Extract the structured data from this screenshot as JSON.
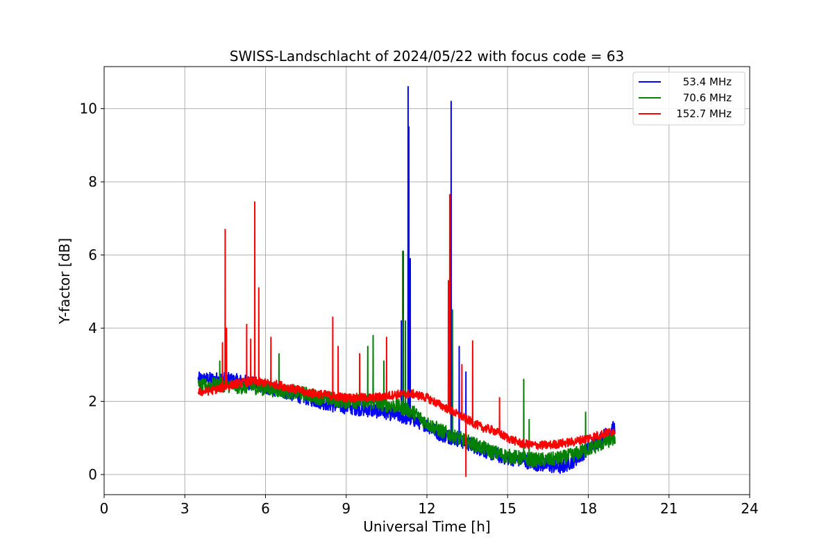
{
  "chart_data": {
    "type": "line",
    "title": "SWISS-Landschlacht of 2024/05/22 with focus code = 63",
    "xlabel": "Universal Time [h]",
    "ylabel": "Y-factor [dB]",
    "xlim": [
      0,
      24
    ],
    "ylim": [
      -0.55,
      11.15
    ],
    "xticks": [
      0,
      3,
      6,
      9,
      12,
      15,
      18,
      21,
      24
    ],
    "xtick_labels": [
      "0",
      "3",
      "6",
      "9",
      "12",
      "15",
      "18",
      "21",
      "24"
    ],
    "yticks": [
      0,
      2,
      4,
      6,
      8,
      10
    ],
    "ytick_labels": [
      "0",
      "2",
      "4",
      "6",
      "8",
      "10"
    ],
    "grid": true,
    "legend_position": "top-right",
    "series": [
      {
        "name": "53.4 MHz",
        "color": "#0000ff",
        "noise": 0.2,
        "x": [
          3.5,
          4.0,
          4.5,
          5.0,
          5.5,
          6.0,
          6.5,
          7.0,
          7.5,
          8.0,
          8.5,
          9.0,
          9.5,
          10.0,
          10.5,
          11.0,
          11.5,
          12.0,
          12.5,
          13.0,
          13.5,
          14.0,
          14.5,
          15.0,
          15.5,
          16.0,
          16.5,
          17.0,
          17.5,
          18.0,
          18.5,
          19.0
        ],
        "y": [
          2.6,
          2.6,
          2.6,
          2.55,
          2.5,
          2.4,
          2.3,
          2.2,
          2.1,
          2.0,
          1.9,
          1.85,
          1.8,
          1.75,
          1.7,
          1.6,
          1.5,
          1.35,
          1.1,
          1.0,
          0.85,
          0.7,
          0.55,
          0.45,
          0.4,
          0.3,
          0.25,
          0.2,
          0.4,
          0.7,
          1.0,
          1.3
        ],
        "spikes": [
          [
            11.05,
            4.2
          ],
          [
            11.12,
            6.1
          ],
          [
            11.3,
            10.6
          ],
          [
            11.33,
            9.5
          ],
          [
            11.38,
            5.9
          ],
          [
            12.9,
            10.2
          ],
          [
            13.2,
            3.5
          ],
          [
            13.45,
            2.8
          ]
        ]
      },
      {
        "name": "70.6 MHz",
        "color": "#008000",
        "noise": 0.2,
        "x": [
          3.5,
          4.0,
          4.5,
          5.0,
          5.5,
          6.0,
          6.5,
          7.0,
          7.5,
          8.0,
          8.5,
          9.0,
          9.5,
          10.0,
          10.5,
          11.0,
          11.5,
          12.0,
          12.5,
          13.0,
          13.5,
          14.0,
          14.5,
          15.0,
          15.5,
          16.0,
          16.5,
          17.0,
          17.5,
          18.0,
          18.5,
          19.0
        ],
        "y": [
          2.4,
          2.45,
          2.45,
          2.4,
          2.4,
          2.35,
          2.3,
          2.25,
          2.2,
          2.1,
          2.05,
          2.0,
          2.0,
          1.95,
          1.9,
          1.85,
          1.7,
          1.4,
          1.2,
          1.05,
          0.9,
          0.75,
          0.6,
          0.5,
          0.45,
          0.4,
          0.4,
          0.45,
          0.55,
          0.7,
          0.85,
          1.0
        ],
        "spikes": [
          [
            4.3,
            3.1
          ],
          [
            6.5,
            3.3
          ],
          [
            9.8,
            3.5
          ],
          [
            10.0,
            3.8
          ],
          [
            10.4,
            3.1
          ],
          [
            11.1,
            6.1
          ],
          [
            11.2,
            4.2
          ],
          [
            12.95,
            4.5
          ],
          [
            15.6,
            2.6
          ],
          [
            15.8,
            1.5
          ],
          [
            17.9,
            1.7
          ]
        ]
      },
      {
        "name": "152.7 MHz",
        "color": "#ff0000",
        "noise": 0.12,
        "x": [
          3.5,
          4.0,
          4.5,
          5.0,
          5.5,
          6.0,
          6.5,
          7.0,
          7.5,
          8.0,
          8.5,
          9.0,
          9.5,
          10.0,
          10.5,
          11.0,
          11.5,
          12.0,
          12.5,
          13.0,
          13.5,
          14.0,
          14.5,
          15.0,
          15.5,
          16.0,
          16.5,
          17.0,
          17.5,
          18.0,
          18.5,
          19.0
        ],
        "y": [
          2.25,
          2.3,
          2.4,
          2.5,
          2.55,
          2.5,
          2.45,
          2.35,
          2.25,
          2.2,
          2.15,
          2.1,
          2.1,
          2.1,
          2.15,
          2.2,
          2.2,
          2.1,
          1.9,
          1.7,
          1.5,
          1.3,
          1.2,
          1.0,
          0.85,
          0.8,
          0.8,
          0.85,
          0.9,
          1.0,
          1.1,
          1.2
        ],
        "spikes": [
          [
            4.4,
            3.6
          ],
          [
            4.5,
            6.7
          ],
          [
            4.55,
            4.0
          ],
          [
            5.3,
            4.1
          ],
          [
            5.45,
            3.7
          ],
          [
            5.6,
            7.45
          ],
          [
            5.75,
            5.1
          ],
          [
            6.2,
            3.75
          ],
          [
            8.5,
            4.3
          ],
          [
            8.7,
            3.5
          ],
          [
            9.5,
            3.3
          ],
          [
            10.5,
            3.75
          ],
          [
            12.8,
            5.3
          ],
          [
            12.85,
            7.65
          ],
          [
            13.3,
            3.0
          ],
          [
            13.45,
            -0.05
          ],
          [
            13.7,
            3.65
          ],
          [
            14.7,
            2.1
          ]
        ]
      }
    ]
  }
}
